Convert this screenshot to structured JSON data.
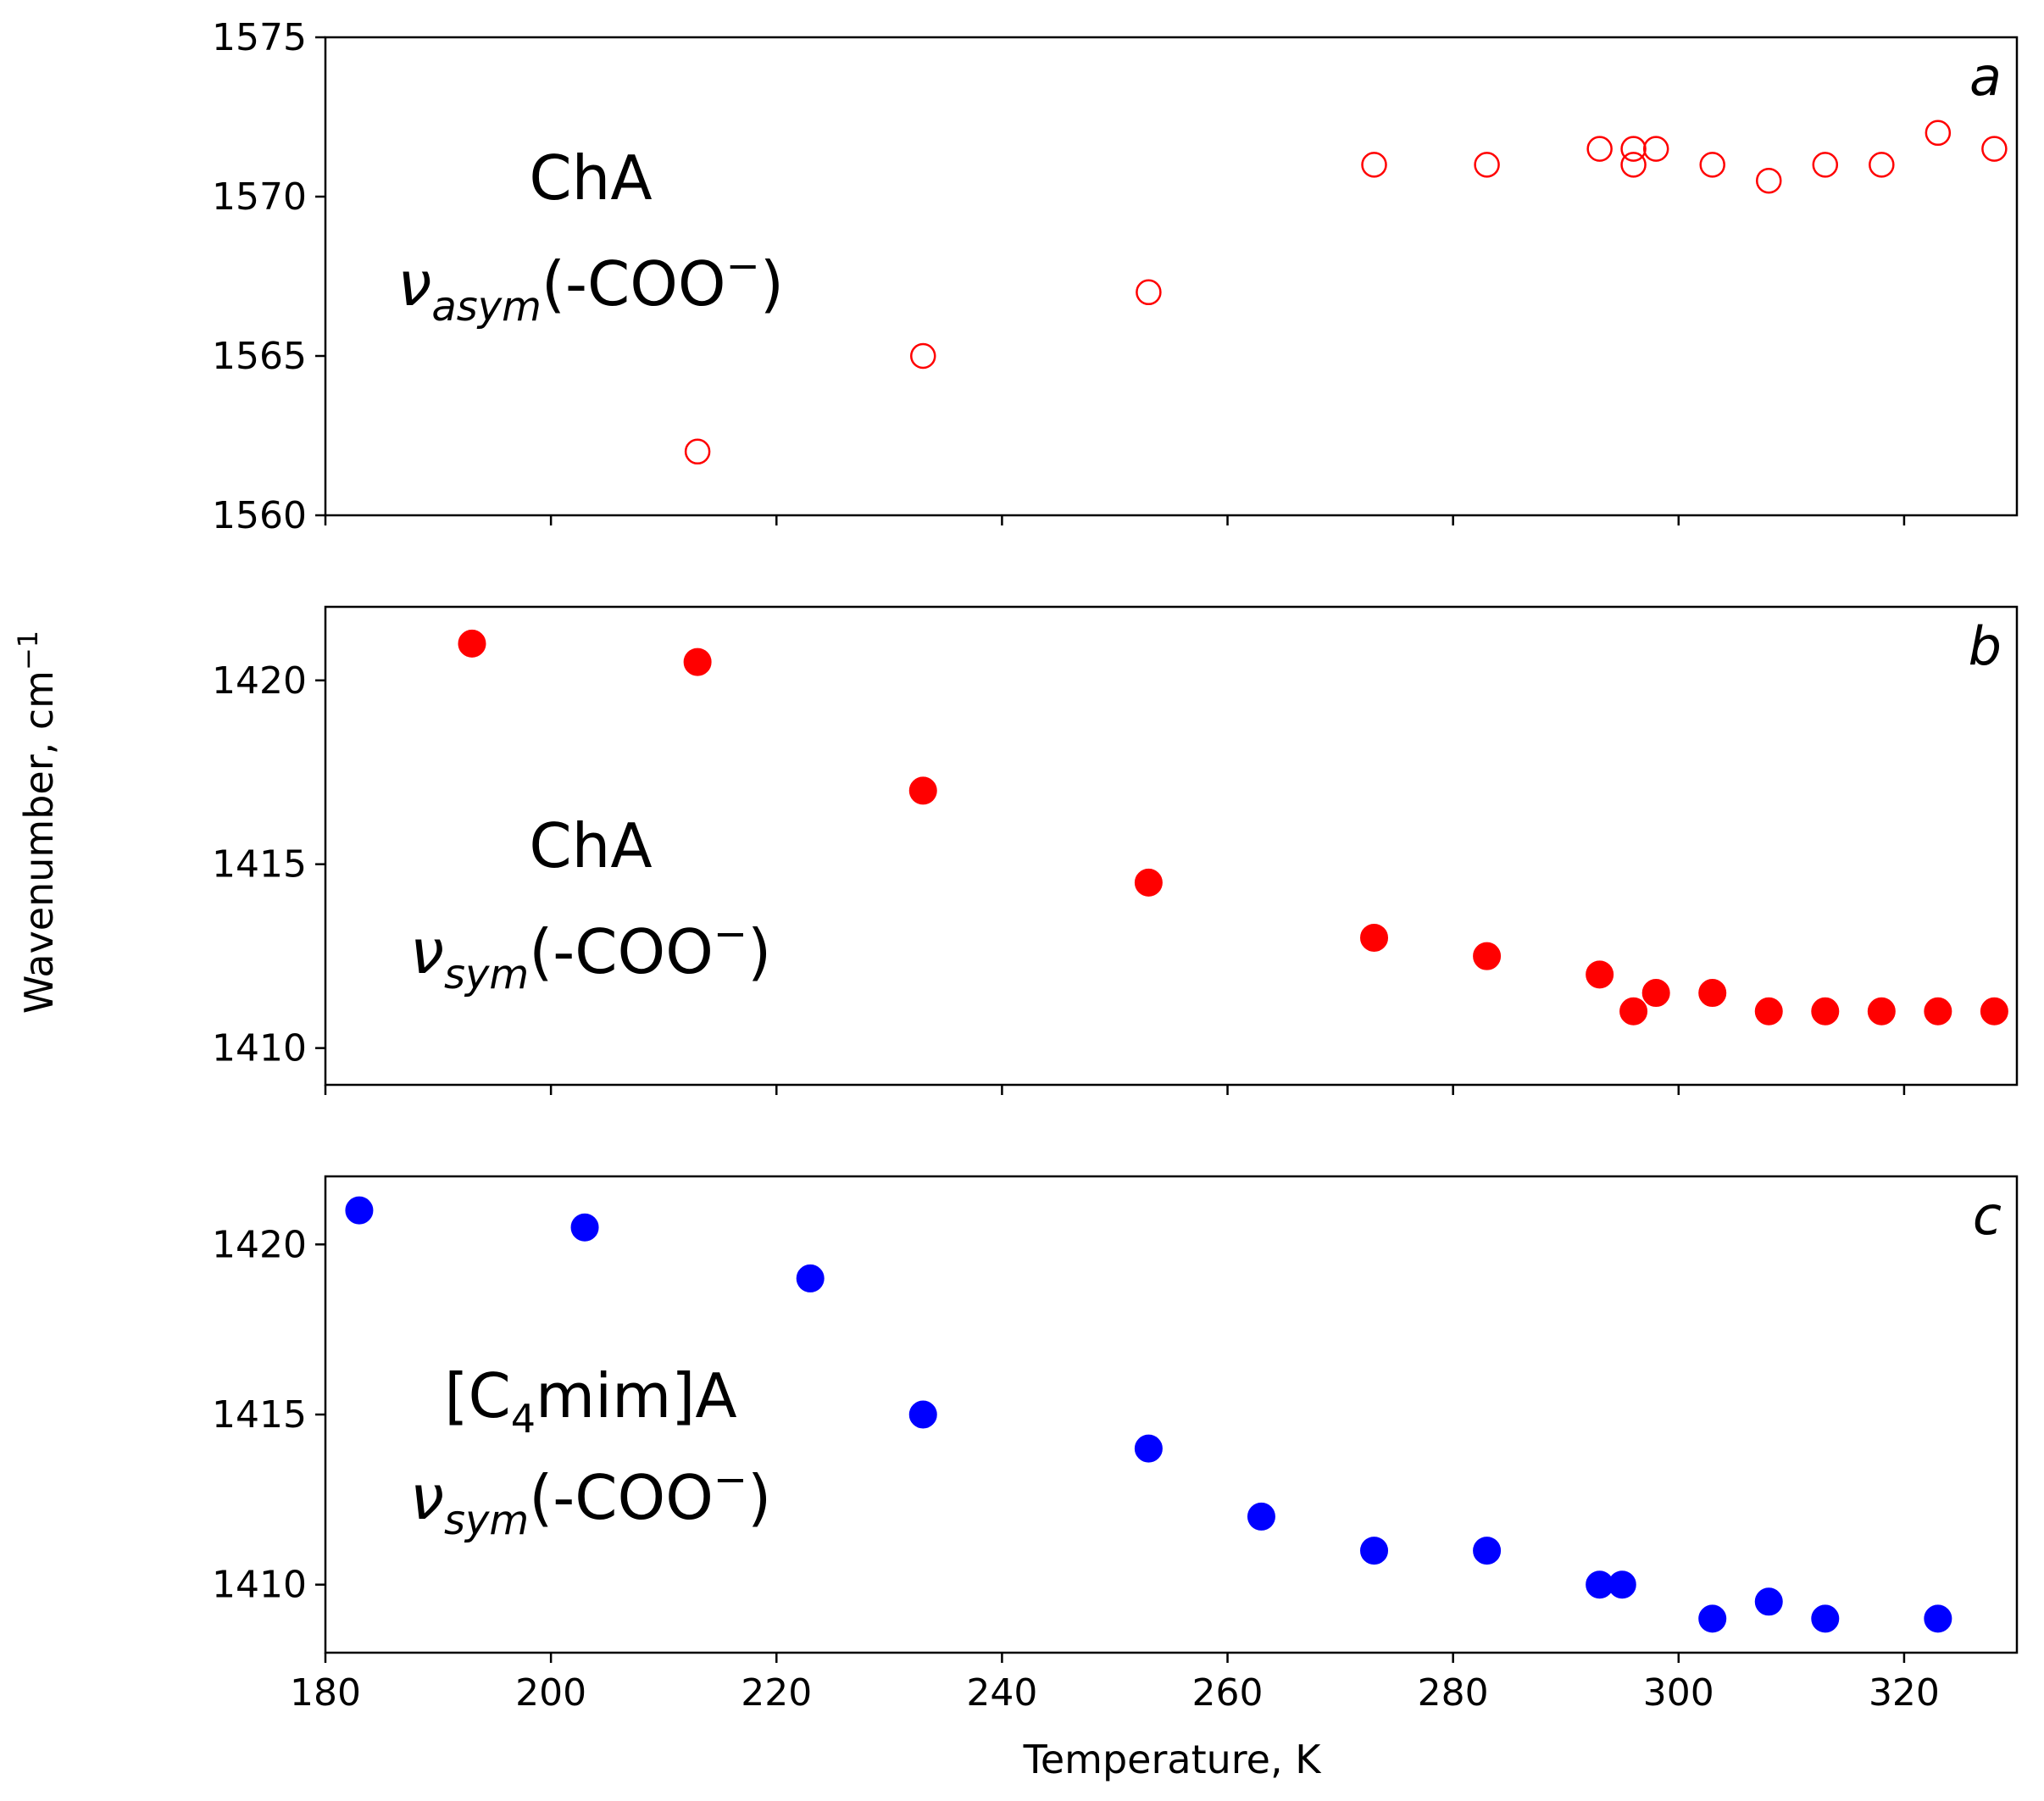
{
  "figure": {
    "ylabel": "Wavenumber, cm",
    "ylabel_sup": "−1",
    "xlabel": "Temperature, K"
  },
  "chart_data": [
    {
      "type": "scatter",
      "panel": "a",
      "marker": "open-circle",
      "color": "#ff0000",
      "annotation": {
        "compound": "ChA",
        "mode": "asym",
        "group": "(-COO",
        "charge": "−",
        "close": ")"
      },
      "xlim": [
        180,
        330
      ],
      "ylim": [
        1560,
        1575
      ],
      "xticks": [
        180,
        200,
        220,
        240,
        260,
        280,
        300,
        320
      ],
      "yticks": [
        1560,
        1565,
        1570,
        1575
      ],
      "x": [
        213,
        233,
        253,
        273,
        283,
        293,
        296,
        296,
        298,
        303,
        308,
        313,
        318,
        323,
        328
      ],
      "y": [
        1562,
        1565,
        1567,
        1571,
        1571,
        1571.5,
        1571,
        1571.5,
        1571.5,
        1571,
        1570.5,
        1571,
        1571,
        1572,
        1571.5
      ]
    },
    {
      "type": "scatter",
      "panel": "b",
      "marker": "filled-circle",
      "color": "#ff0000",
      "annotation": {
        "compound": "ChA",
        "mode": "sym",
        "group": "(-COO",
        "charge": "−",
        "close": ")"
      },
      "xlim": [
        180,
        330
      ],
      "ylim": [
        1409,
        1422
      ],
      "xticks": [
        180,
        200,
        220,
        240,
        260,
        280,
        300,
        320
      ],
      "yticks": [
        1410,
        1415,
        1420
      ],
      "x": [
        193,
        213,
        233,
        253,
        273,
        283,
        293,
        296,
        298,
        303,
        308,
        313,
        318,
        323,
        328
      ],
      "y": [
        1421,
        1420.5,
        1417,
        1414.5,
        1413,
        1412.5,
        1412,
        1411,
        1411.5,
        1411.5,
        1411,
        1411,
        1411,
        1411,
        1411
      ]
    },
    {
      "type": "scatter",
      "panel": "c",
      "marker": "filled-circle",
      "color": "#0000ff",
      "annotation": {
        "compound_pre": "[C",
        "compound_sub": "4",
        "compound_post": "mim]A",
        "mode": "sym",
        "group": "(-COO",
        "charge": "−",
        "close": ")"
      },
      "xlim": [
        180,
        330
      ],
      "ylim": [
        1408,
        1422
      ],
      "xticks": [
        180,
        200,
        220,
        240,
        260,
        280,
        300,
        320
      ],
      "yticks": [
        1410,
        1415,
        1420
      ],
      "x": [
        183,
        203,
        223,
        233,
        253,
        263,
        273,
        283,
        293,
        295,
        303,
        308,
        313,
        323
      ],
      "y": [
        1421,
        1420.5,
        1419,
        1415,
        1414,
        1412,
        1411,
        1411,
        1410,
        1410,
        1409,
        1409.5,
        1409,
        1409
      ]
    }
  ]
}
